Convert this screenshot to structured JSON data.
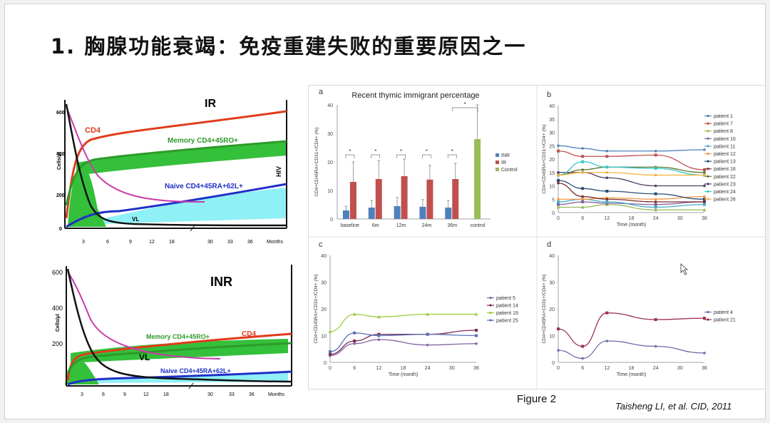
{
  "slide": {
    "title": "1. 胸腺功能衰竭：免疫重建失败的重要原因之一",
    "figure_caption": "Figure 2",
    "citation": "Taisheng LI, et al. CID, 2011"
  },
  "schematics": [
    {
      "id": "ir",
      "title": "IR",
      "ylabel": "Cells/μl",
      "yticks": [
        "600",
        "400",
        "200",
        "0"
      ],
      "xticks": [
        "3",
        "6",
        "9",
        "12",
        "18",
        "30",
        "33",
        "36",
        "Months"
      ],
      "labels": {
        "cd4": "CD4",
        "memory": "Memory CD4+45RO+",
        "naive": "Naive CD4+45RA+62L+",
        "vl": "VL",
        "hiv": "HIV"
      }
    },
    {
      "id": "inr",
      "title": "INR",
      "ylabel": "Cells/μl",
      "yticks": [
        "600",
        "400",
        "200"
      ],
      "xticks": [
        "3",
        "6",
        "9",
        "12",
        "18",
        "30",
        "33",
        "36",
        "Months"
      ],
      "labels": {
        "cd4": "CD4",
        "memory": "Memory CD4+45RO+",
        "naive": "Naive CD4+45RA+62L+",
        "vl": "VL"
      }
    }
  ],
  "colors": {
    "ir_red": "#e03c1c",
    "memory_green": "#2e9a2a",
    "naive_blue": "#1f2fc8",
    "cyan": "#8ff0f5",
    "green_fill": "#34c03a",
    "inr_bar": "#4f81bd",
    "ir_bar": "#c0504d",
    "control_bar": "#9bbb59"
  },
  "chart_data": [
    {
      "panel": "a",
      "type": "bar",
      "title": "Recent thymic immigrant percentage",
      "ylabel": "CD4+CD45RA+CD31+/CD4+ (%)",
      "ylim": [
        0,
        40
      ],
      "yticks": [
        0,
        10,
        20,
        30,
        40
      ],
      "categories": [
        "baseline",
        "6m",
        "12m",
        "24m",
        "36m",
        "control"
      ],
      "series": [
        {
          "name": "INR",
          "values": [
            3,
            4,
            4.5,
            4.3,
            4,
            null
          ],
          "errors": [
            1.5,
            2.5,
            3,
            2.5,
            2.5,
            null
          ]
        },
        {
          "name": "IR",
          "values": [
            13,
            14,
            15,
            13.8,
            14,
            null
          ],
          "errors": [
            7,
            6.5,
            6,
            5,
            5.5,
            null
          ]
        },
        {
          "name": "Control",
          "values": [
            null,
            null,
            null,
            null,
            null,
            28
          ],
          "errors": [
            null,
            null,
            null,
            null,
            null,
            12
          ]
        }
      ],
      "significance": [
        "*",
        "*",
        "*",
        "*",
        "*",
        "*"
      ]
    },
    {
      "panel": "b",
      "type": "line",
      "xlabel": "Time (month)",
      "ylabel": "CD4+CD45RA+CD31+/CD4+ (%)",
      "x": [
        0,
        6,
        12,
        24,
        36
      ],
      "xticks": [
        0,
        6,
        12,
        18,
        24,
        30,
        36
      ],
      "ylim": [
        0,
        40
      ],
      "yticks": [
        0,
        5,
        10,
        15,
        20,
        25,
        30,
        35,
        40
      ],
      "series": [
        {
          "name": "patient 1",
          "values": [
            25,
            24,
            23,
            23,
            23.5
          ]
        },
        {
          "name": "patient 7",
          "values": [
            23,
            21,
            21,
            21.5,
            16
          ]
        },
        {
          "name": "patient 8",
          "values": [
            2,
            2,
            3,
            1,
            1
          ]
        },
        {
          "name": "patient 10",
          "values": [
            3,
            4,
            3.5,
            3,
            4
          ]
        },
        {
          "name": "patient 11",
          "values": [
            4,
            5,
            4,
            2,
            3
          ]
        },
        {
          "name": "patient 12",
          "values": [
            5,
            5,
            5.5,
            5,
            6
          ]
        },
        {
          "name": "patient 13",
          "values": [
            12,
            9,
            8,
            7,
            5
          ]
        },
        {
          "name": "patient 16",
          "values": [
            11,
            6,
            5,
            4,
            4
          ]
        },
        {
          "name": "patient 22",
          "values": [
            14,
            16,
            17,
            17,
            15
          ]
        },
        {
          "name": "patient 23",
          "values": [
            15,
            15,
            13,
            10,
            10
          ]
        },
        {
          "name": "patient 24",
          "values": [
            14,
            19,
            17,
            16.5,
            14
          ]
        },
        {
          "name": "patient 26",
          "values": [
            14,
            15,
            15,
            14,
            14
          ]
        }
      ]
    },
    {
      "panel": "c",
      "type": "line",
      "xlabel": "Time (month)",
      "ylabel": "CD4+CD45RA+CD31+/CD4+ (%)",
      "x": [
        0,
        6,
        12,
        24,
        36
      ],
      "xticks": [
        0,
        6,
        12,
        18,
        24,
        30,
        36
      ],
      "ylim": [
        0,
        40
      ],
      "yticks": [
        0,
        5,
        10,
        15,
        20,
        25,
        30,
        35,
        40
      ],
      "series": [
        {
          "name": "patient 5",
          "values": [
            2.5,
            7,
            8.5,
            6.5,
            7
          ]
        },
        {
          "name": "patient 14",
          "values": [
            3,
            8,
            10.5,
            10.5,
            12
          ]
        },
        {
          "name": "patient 19",
          "values": [
            11.5,
            18,
            17,
            18,
            18
          ]
        },
        {
          "name": "patient 25",
          "values": [
            4,
            11,
            10,
            10.5,
            10
          ]
        }
      ]
    },
    {
      "panel": "d",
      "type": "line",
      "xlabel": "Time (month)",
      "ylabel": "CD4+CD45RA+CD31+/CD4+ (%)",
      "x": [
        0,
        6,
        12,
        24,
        36
      ],
      "xticks": [
        0,
        6,
        12,
        18,
        24,
        30,
        36
      ],
      "ylim": [
        0,
        40
      ],
      "yticks": [
        0,
        5,
        10,
        15,
        20,
        25,
        30,
        35,
        40
      ],
      "series": [
        {
          "name": "patient 4",
          "values": [
            4.5,
            1.5,
            8,
            6,
            3.5
          ]
        },
        {
          "name": "patient 21",
          "values": [
            12.5,
            6,
            18.5,
            16,
            16.5
          ]
        }
      ]
    }
  ]
}
